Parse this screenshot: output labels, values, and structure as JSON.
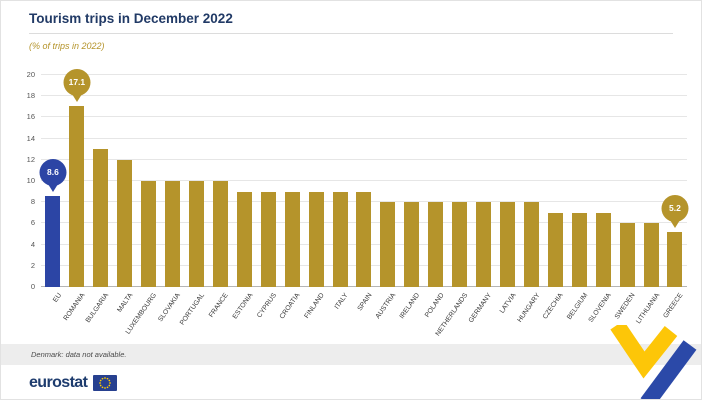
{
  "header": {
    "title": "Tourism trips in December 2022",
    "subtitle": "(% of trips in 2022)"
  },
  "chart_data": {
    "type": "bar",
    "title": "Tourism trips in December 2022",
    "subtitle": "(% of trips in 2022)",
    "ylim": [
      0,
      20
    ],
    "ytick_step": 2,
    "grid": true,
    "bar_color": "#b5942b",
    "eu_bar_color": "#2c45a5",
    "highlight_category": "EU",
    "categories": [
      "EU",
      "ROMANIA",
      "BULGARIA",
      "MALTA",
      "LUXEMBOURG",
      "SLOVAKIA",
      "PORTUGAL",
      "FRANCE",
      "ESTONIA",
      "CYPRUS",
      "CROATIA",
      "FINLAND",
      "ITALY",
      "SPAIN",
      "AUSTRIA",
      "IRELAND",
      "POLAND",
      "NETHERLANDS",
      "GERMANY",
      "LATVIA",
      "HUNGARY",
      "CZECHIA",
      "BELGIUM",
      "SLOVENIA",
      "SWEDEN",
      "LITHUANIA",
      "GREECE"
    ],
    "values": [
      8.6,
      17.1,
      13,
      12,
      10,
      10,
      10,
      10,
      9,
      9,
      9,
      9,
      9,
      9,
      8,
      8,
      8,
      8,
      8,
      8,
      8,
      7,
      7,
      7,
      6,
      6,
      5.2
    ],
    "callouts": [
      {
        "category": "EU",
        "value": "8.6",
        "color": "#2c45a5"
      },
      {
        "category": "ROMANIA",
        "value": "17.1",
        "color": "#b5942b"
      },
      {
        "category": "GREECE",
        "value": "5.2",
        "color": "#b5942b"
      }
    ]
  },
  "footnote": "Denmark: data not available.",
  "footer": {
    "brand": "eurostat"
  },
  "colors": {
    "title": "#213a66",
    "subtitle_gold": "#b5942b",
    "flag_blue": "#27408f",
    "star_yellow": "#ffcc00",
    "swoosh_yellow": "#fdc608",
    "swoosh_blue": "#2b49a8"
  }
}
